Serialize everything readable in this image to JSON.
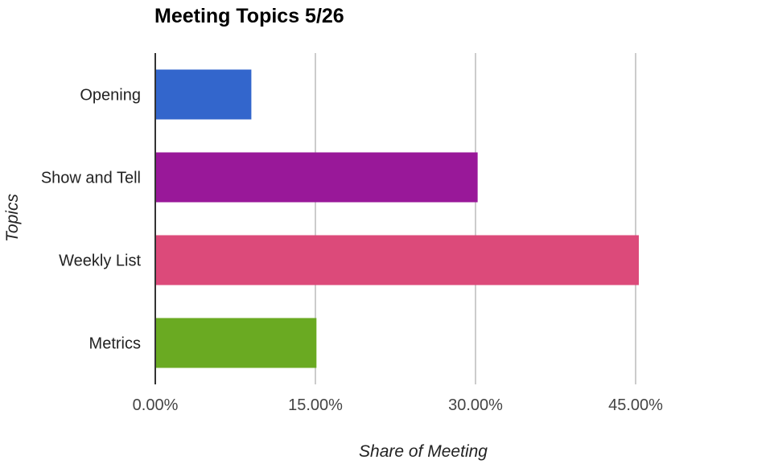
{
  "chart_data": {
    "type": "bar",
    "orientation": "horizontal",
    "title": "Meeting Topics 5/26",
    "xlabel": "Share of Meeting",
    "ylabel": "Topics",
    "categories": [
      "Opening",
      "Show and Tell",
      "Weekly List",
      "Metrics"
    ],
    "values": [
      9.0,
      30.2,
      45.3,
      15.1
    ],
    "value_unit": "%",
    "xlim": [
      0,
      60
    ],
    "x_ticks": [
      0,
      15,
      30,
      45
    ],
    "x_tick_labels": [
      "0.00%",
      "15.00%",
      "30.00%",
      "45.00%"
    ],
    "bar_colors": [
      "#3366cc",
      "#991899",
      "#dc4a7a",
      "#6aaa22"
    ],
    "grid": true,
    "legend": "none"
  }
}
